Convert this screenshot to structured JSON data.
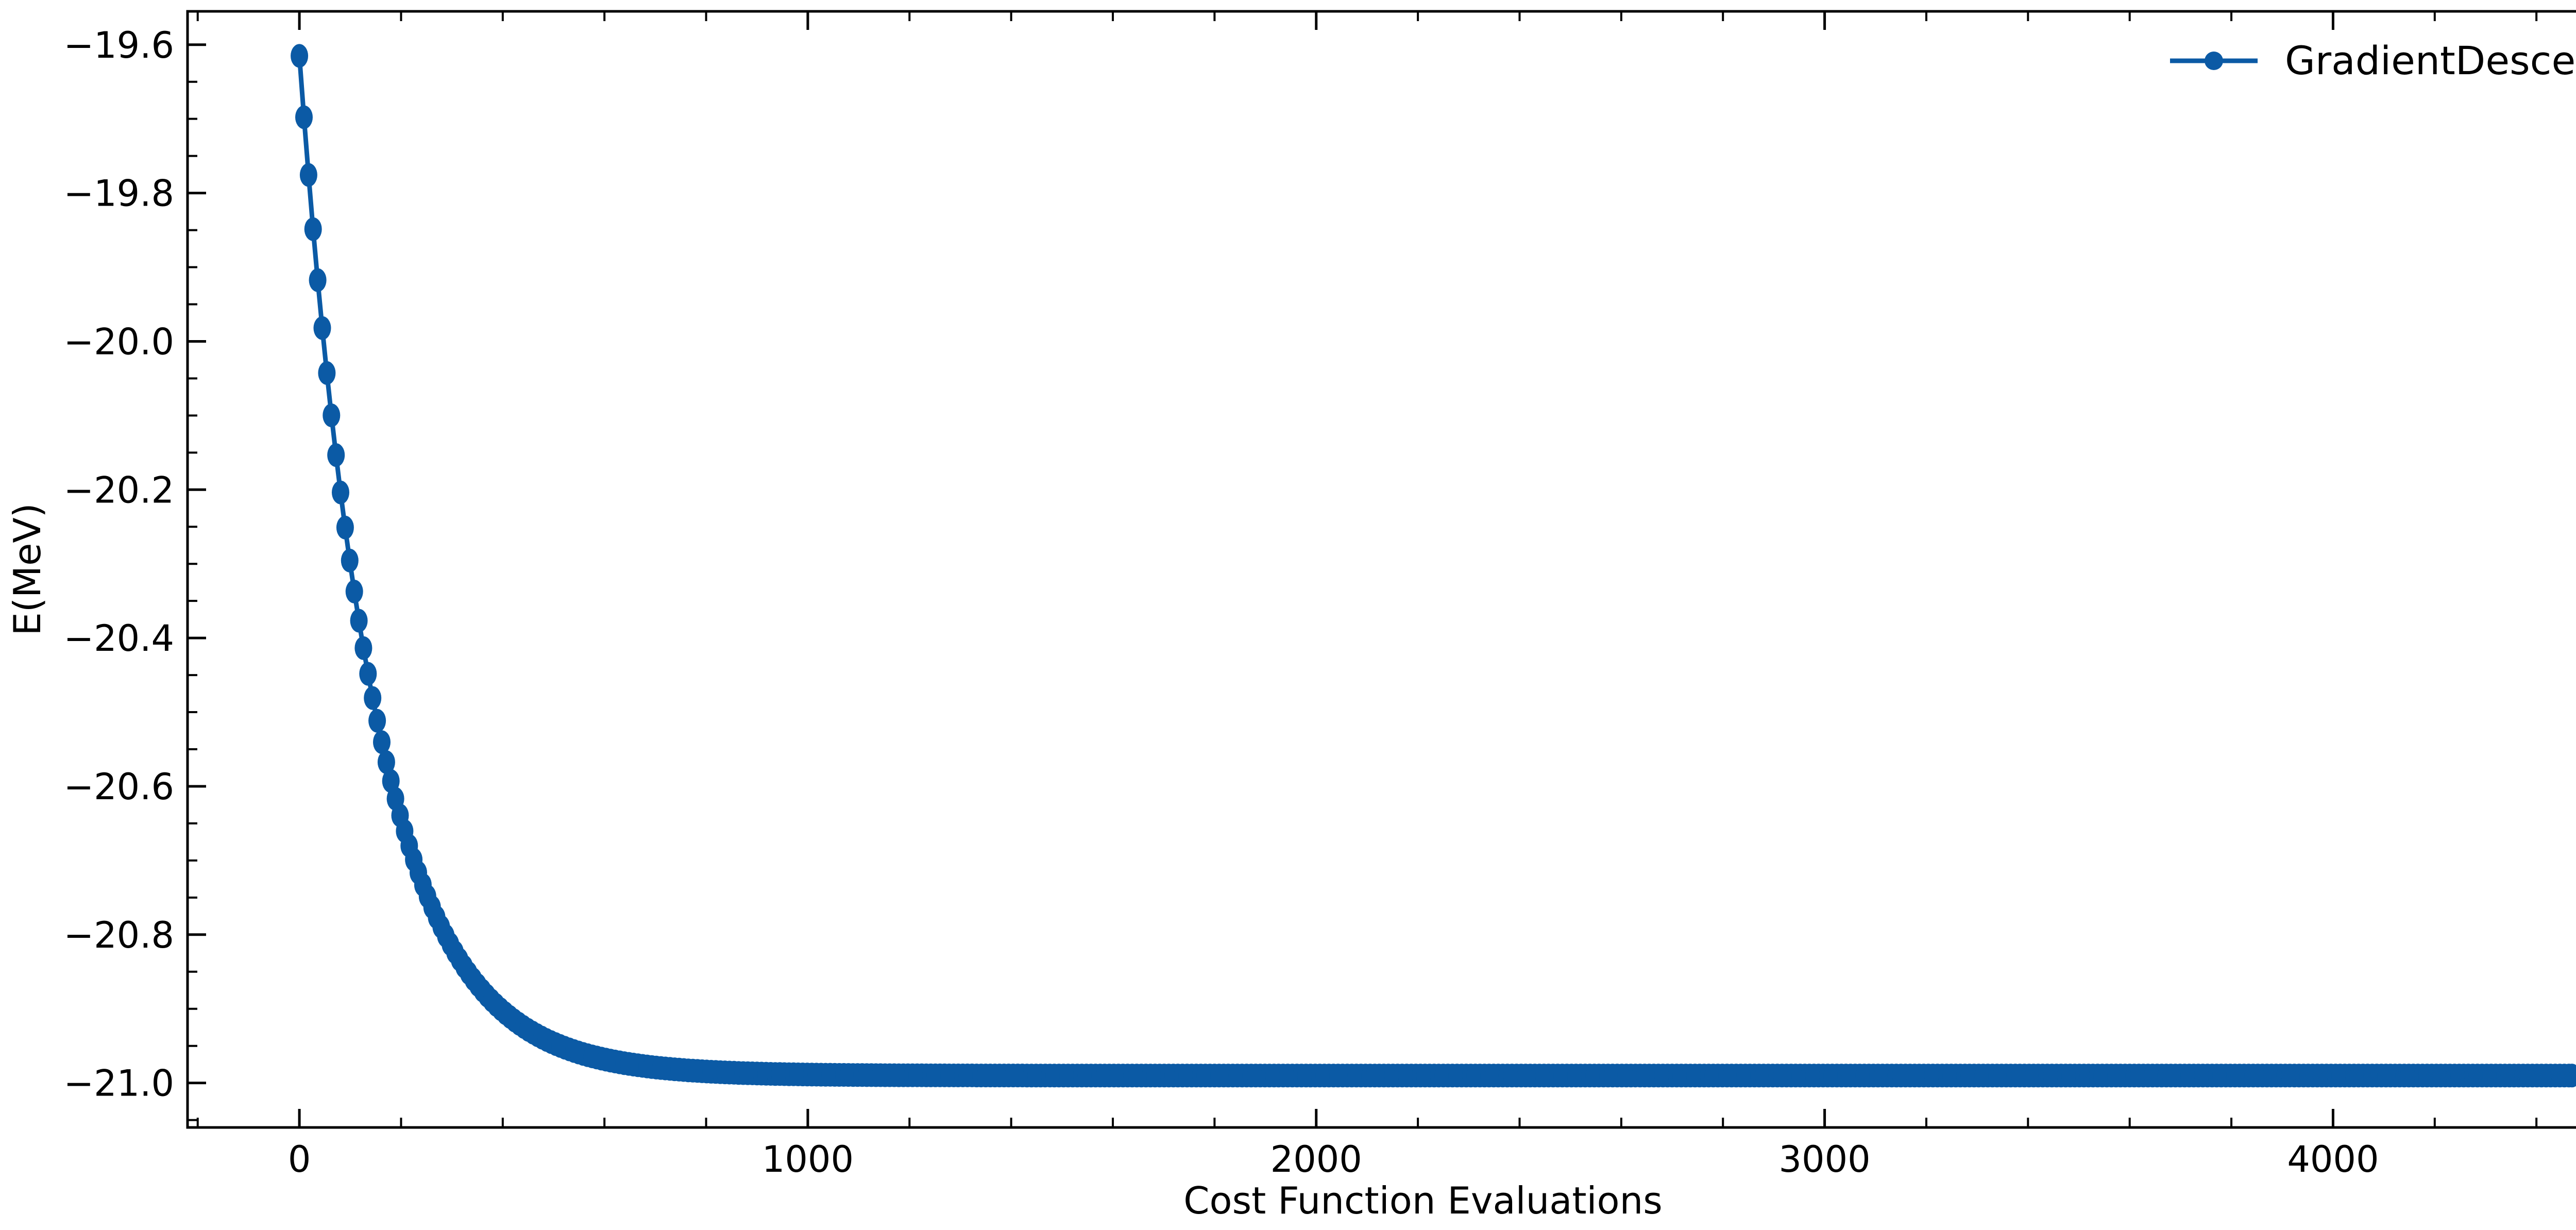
{
  "chart_data": {
    "type": "line",
    "xlabel": "Cost Function Evaluations",
    "ylabel": "E(MeV)",
    "xlim": [
      -220,
      4640
    ],
    "ylim": [
      -21.06,
      -19.555
    ],
    "xticks": [
      0,
      1000,
      2000,
      3000,
      4000
    ],
    "xtick_labels": [
      "0",
      "1000",
      "2000",
      "3000",
      "4000"
    ],
    "xminor_step": 200,
    "yticks": [
      -19.6,
      -19.8,
      -20.0,
      -20.2,
      -20.4,
      -20.6,
      -20.8,
      -21.0
    ],
    "ytick_labels": [
      "−19.6",
      "−19.8",
      "−20.0",
      "−20.2",
      "−20.4",
      "−20.6",
      "−20.8",
      "−21.0"
    ],
    "yminor_step": 0.05,
    "grid": false,
    "legend_position": "top-right",
    "series": [
      {
        "name": "GradientDescent",
        "color": "#0b5aa5",
        "marker": "circle",
        "x_start": 0,
        "x_end": 4470,
        "x_step": 9,
        "asymptote": -20.99,
        "start_value": -19.615,
        "decay_per_eval": 0.0069,
        "key_points": [
          {
            "x": 0,
            "y": -19.615
          },
          {
            "x": 100,
            "y": -20.43
          },
          {
            "x": 200,
            "y": -20.78
          },
          {
            "x": 300,
            "y": -20.91
          },
          {
            "x": 500,
            "y": -20.97
          },
          {
            "x": 1000,
            "y": -20.99
          },
          {
            "x": 4470,
            "y": -20.99
          }
        ]
      }
    ]
  }
}
